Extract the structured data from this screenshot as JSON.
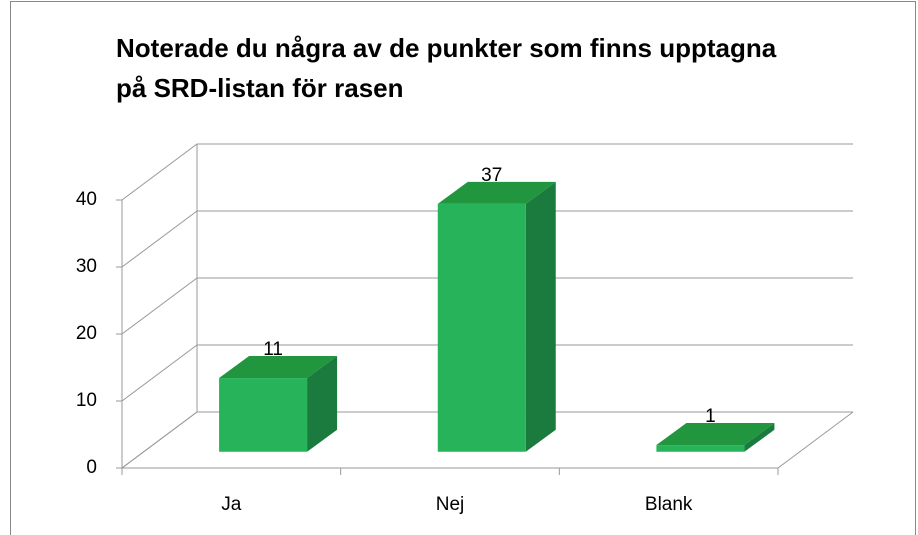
{
  "chart_data": {
    "type": "bar3d",
    "title": [
      "Noterade du några av de punkter som finns upptagna",
      "på SRD-listan för rasen"
    ],
    "categories": [
      "Ja",
      "Nej",
      "Blank"
    ],
    "values": [
      11,
      37,
      1
    ],
    "color": "#27b35a",
    "ylim": [
      0,
      40
    ],
    "yticks": [
      0,
      10,
      20,
      30,
      40
    ],
    "grid": true
  }
}
